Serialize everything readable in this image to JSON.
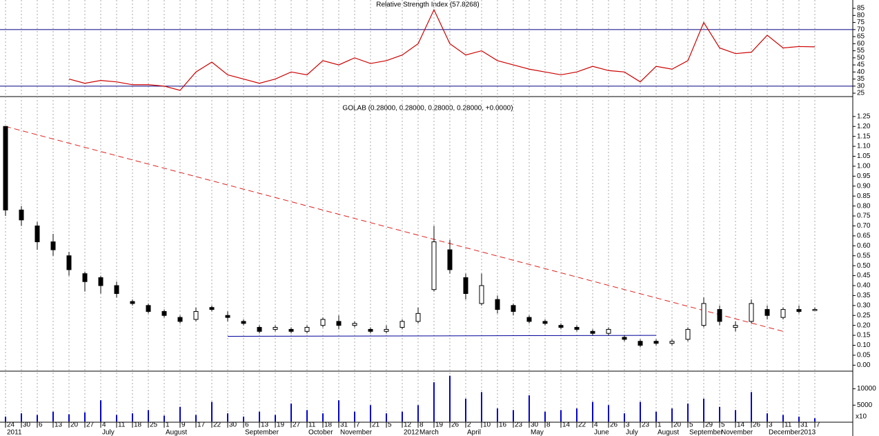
{
  "chart_data": [
    {
      "type": "line",
      "title": "Relative Strength Index (57.8268)",
      "color": "#cc0000",
      "values": [
        null,
        null,
        null,
        null,
        35,
        32,
        34,
        33,
        31,
        31,
        30,
        27,
        40,
        47,
        38,
        35,
        32,
        35,
        40,
        38,
        48,
        45,
        50,
        46,
        48,
        52,
        60,
        84,
        60,
        52,
        55,
        48,
        45,
        42,
        40,
        38,
        40,
        44,
        41,
        40,
        33,
        44,
        42,
        48,
        75,
        57,
        53,
        54,
        66,
        57,
        58,
        57.8
      ],
      "ylim": [
        22.6,
        90.9
      ],
      "yticks": [
        25,
        30,
        35,
        40,
        45,
        50,
        55,
        60,
        65,
        70,
        75,
        80,
        85
      ],
      "hlines": [
        70,
        30
      ],
      "hline_color": "#000080"
    },
    {
      "type": "candlestick",
      "title": "GOLAB (0.28000, 0.28000, 0.28000, 0.28000, +0.0000)",
      "open": [
        1.2,
        0.78,
        0.7,
        0.62,
        0.55,
        0.46,
        0.44,
        0.4,
        0.32,
        0.3,
        0.27,
        0.24,
        0.23,
        0.29,
        0.25,
        0.22,
        0.19,
        0.18,
        0.18,
        0.17,
        0.2,
        0.22,
        0.2,
        0.18,
        0.17,
        0.19,
        0.22,
        0.38,
        0.58,
        0.44,
        0.31,
        0.33,
        0.3,
        0.24,
        0.22,
        0.2,
        0.19,
        0.17,
        0.16,
        0.14,
        0.12,
        0.12,
        0.11,
        0.13,
        0.2,
        0.28,
        0.19,
        0.22,
        0.28,
        0.24,
        0.28,
        0.28
      ],
      "high": [
        1.2,
        0.8,
        0.72,
        0.66,
        0.57,
        0.47,
        0.45,
        0.42,
        0.33,
        0.31,
        0.28,
        0.25,
        0.29,
        0.3,
        0.27,
        0.23,
        0.2,
        0.2,
        0.19,
        0.2,
        0.24,
        0.25,
        0.22,
        0.19,
        0.2,
        0.23,
        0.29,
        0.7,
        0.63,
        0.46,
        0.46,
        0.35,
        0.31,
        0.25,
        0.23,
        0.21,
        0.2,
        0.18,
        0.19,
        0.15,
        0.13,
        0.13,
        0.13,
        0.19,
        0.34,
        0.3,
        0.22,
        0.33,
        0.3,
        0.29,
        0.3,
        0.29
      ],
      "low": [
        0.75,
        0.7,
        0.58,
        0.55,
        0.45,
        0.37,
        0.36,
        0.34,
        0.3,
        0.26,
        0.24,
        0.21,
        0.22,
        0.27,
        0.22,
        0.2,
        0.16,
        0.17,
        0.16,
        0.16,
        0.19,
        0.18,
        0.19,
        0.16,
        0.16,
        0.18,
        0.21,
        0.37,
        0.46,
        0.33,
        0.3,
        0.26,
        0.25,
        0.21,
        0.2,
        0.18,
        0.17,
        0.15,
        0.15,
        0.12,
        0.09,
        0.1,
        0.1,
        0.12,
        0.19,
        0.2,
        0.17,
        0.21,
        0.23,
        0.23,
        0.26,
        0.28
      ],
      "close": [
        0.78,
        0.73,
        0.62,
        0.58,
        0.48,
        0.42,
        0.4,
        0.36,
        0.31,
        0.27,
        0.25,
        0.22,
        0.27,
        0.28,
        0.24,
        0.21,
        0.17,
        0.19,
        0.17,
        0.19,
        0.23,
        0.2,
        0.21,
        0.17,
        0.18,
        0.22,
        0.26,
        0.62,
        0.48,
        0.36,
        0.4,
        0.28,
        0.27,
        0.22,
        0.21,
        0.19,
        0.18,
        0.16,
        0.18,
        0.13,
        0.1,
        0.11,
        0.12,
        0.18,
        0.31,
        0.22,
        0.2,
        0.31,
        0.25,
        0.28,
        0.27,
        0.28
      ],
      "ylim": [
        -0.03,
        1.35
      ],
      "yticks": [
        {
          "value": 0,
          "label": "0.00"
        },
        {
          "value": 0.05,
          "label": "0.05"
        },
        {
          "value": 0.1,
          "label": "0.10"
        },
        {
          "value": 0.15,
          "label": "0.15"
        },
        {
          "value": 0.2,
          "label": "0.20"
        },
        {
          "value": 0.25,
          "label": "0.25"
        },
        {
          "value": 0.3,
          "label": "0.30"
        },
        {
          "value": 0.35,
          "label": "0.35"
        },
        {
          "value": 0.4,
          "label": "0.40"
        },
        {
          "value": 0.45,
          "label": "0.45"
        },
        {
          "value": 0.5,
          "label": "0.50"
        },
        {
          "value": 0.55,
          "label": "0.55"
        },
        {
          "value": 0.6,
          "label": "0.60"
        },
        {
          "value": 0.65,
          "label": "0.65"
        },
        {
          "value": 0.7,
          "label": "0.70"
        },
        {
          "value": 0.75,
          "label": "0.75"
        },
        {
          "value": 0.8,
          "label": "0.80"
        },
        {
          "value": 0.85,
          "label": "0.85"
        },
        {
          "value": 0.9,
          "label": "0.90"
        },
        {
          "value": 0.95,
          "label": "0.95"
        },
        {
          "value": 1.0,
          "label": "1.00"
        },
        {
          "value": 1.05,
          "label": "1.05"
        },
        {
          "value": 1.1,
          "label": "1.10"
        },
        {
          "value": 1.15,
          "label": "1.15"
        },
        {
          "value": 1.2,
          "label": "1.20"
        },
        {
          "value": 1.25,
          "label": "1.25"
        }
      ],
      "trendlines": [
        {
          "color": "#dd2222",
          "dashed": true,
          "x": [
            0,
            49
          ],
          "y": [
            1.2,
            0.17
          ]
        },
        {
          "color": "#000099",
          "dashed": false,
          "x": [
            14,
            41
          ],
          "y": [
            0.145,
            0.15
          ]
        }
      ]
    },
    {
      "type": "bar",
      "color": "#0000cc",
      "values": [
        1500,
        2500,
        2000,
        3000,
        2200,
        2800,
        6500,
        2000,
        2500,
        3500,
        1800,
        4500,
        2000,
        6000,
        2500,
        1500,
        3000,
        2000,
        5500,
        3500,
        2500,
        6500,
        3000,
        5000,
        2500,
        3000,
        5000,
        12000,
        14000,
        7000,
        9000,
        4000,
        3500,
        8000,
        3000,
        3500,
        4000,
        6000,
        5000,
        2500,
        6000,
        3000,
        4000,
        5500,
        7000,
        4500,
        3500,
        9000,
        2500,
        2000,
        1500,
        1000
      ],
      "ylim": [
        0,
        15400
      ],
      "yticks": [
        5000,
        10000
      ],
      "unit": "x10",
      "categories": [
        "24",
        "30",
        "6",
        "13",
        "20",
        "27",
        "4",
        "11",
        "18",
        "25",
        "1",
        "9",
        "17",
        "22",
        "30",
        "6",
        "13",
        "19",
        "27",
        "11",
        "18",
        "31",
        "7",
        "21",
        "5",
        "12",
        "8",
        "19",
        "26",
        "2",
        "10",
        "16",
        "23",
        "30",
        "8",
        "14",
        "22",
        "4",
        "26",
        "3",
        "23",
        "1",
        "20",
        "5",
        "29",
        "5",
        "14",
        "26",
        "3",
        "11",
        "31",
        "7"
      ],
      "month_labels": [
        "2011",
        null,
        null,
        null,
        null,
        null,
        "July",
        null,
        null,
        null,
        "August",
        null,
        null,
        null,
        null,
        "September",
        null,
        null,
        null,
        "October",
        null,
        "November",
        null,
        null,
        null,
        "2012",
        "March",
        null,
        null,
        "April",
        null,
        null,
        null,
        "May",
        null,
        null,
        null,
        "June",
        null,
        "July",
        null,
        "August",
        null,
        "September",
        null,
        "November",
        null,
        null,
        "December",
        null,
        "2013",
        null
      ]
    }
  ]
}
